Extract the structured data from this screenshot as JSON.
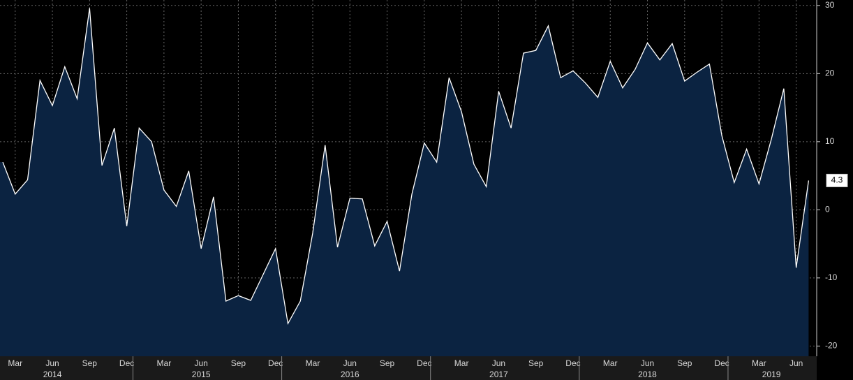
{
  "chart_data": {
    "type": "area",
    "categories": [
      null,
      "Mar",
      null,
      null,
      "Jun",
      null,
      null,
      "Sep",
      null,
      null,
      "Dec",
      null,
      null,
      "Mar",
      null,
      null,
      "Jun",
      null,
      null,
      "Sep",
      null,
      null,
      "Dec",
      null,
      null,
      "Mar",
      null,
      null,
      "Jun",
      null,
      null,
      "Sep",
      null,
      null,
      "Dec",
      null,
      null,
      "Mar",
      null,
      null,
      "Jun",
      null,
      null,
      "Sep",
      null,
      null,
      "Dec",
      null,
      null,
      "Mar",
      null,
      null,
      "Jun",
      null,
      null,
      "Sep",
      null,
      null,
      "Dec",
      null,
      null,
      "Mar",
      null,
      null,
      "Jun",
      null
    ],
    "years": [
      "2014",
      "2015",
      "2016",
      "2017",
      "2018",
      "2019"
    ],
    "values": [
      7,
      2.3,
      4.4,
      19,
      15.3,
      21,
      16.3,
      29.6,
      6.5,
      12,
      -2.4,
      12,
      10,
      2.9,
      0.5,
      5.7,
      -5.7,
      1.9,
      -13.4,
      -12.6,
      -13.3,
      -9.5,
      -5.7,
      -16.7,
      -13.4,
      -3.4,
      9.5,
      -5.5,
      1.7,
      1.6,
      -5.3,
      -1.7,
      -9,
      2.3,
      9.8,
      7,
      19.4,
      14.4,
      6.7,
      3.4,
      17.4,
      12,
      23,
      23.4,
      27,
      19.4,
      20.4,
      18.6,
      16.5,
      21.8,
      17.9,
      20.6,
      24.5,
      22,
      24.4,
      18.9,
      20.2,
      21.4,
      10.9,
      4,
      8.9,
      3.8,
      10.4,
      17.8,
      -8.5,
      4.3
    ],
    "color": "#0b2341",
    "line_color": "#ffffff",
    "ylim": [
      -21.5,
      30.8
    ],
    "yticks": [
      -20,
      -10,
      0,
      10,
      20,
      30
    ],
    "grid": true
  }
}
